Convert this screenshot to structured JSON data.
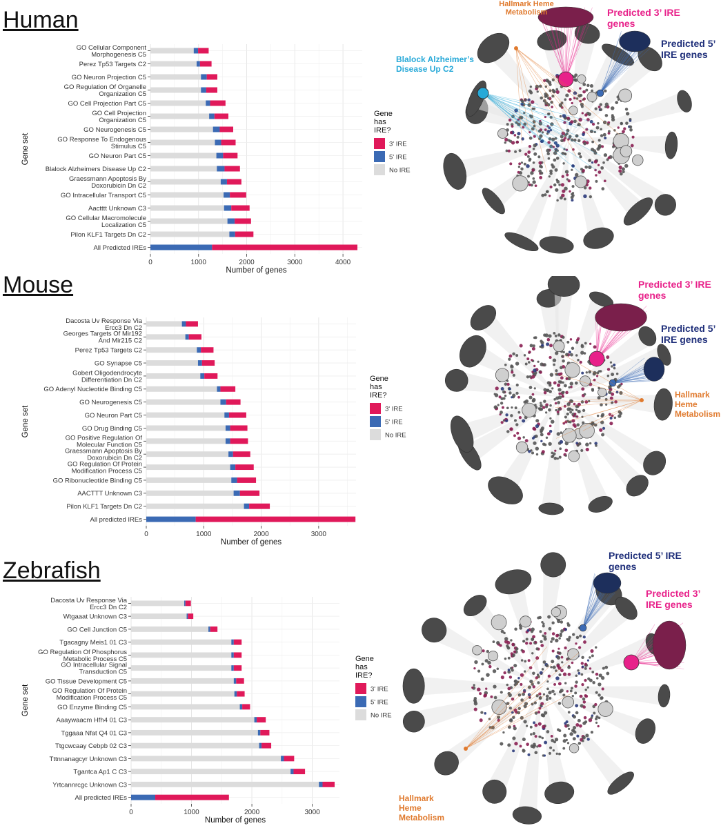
{
  "colors": {
    "ire3": "#e0195a",
    "ire5": "#3b6ab4",
    "noire": "#dcdcdc",
    "label_magenta": "#e8218a",
    "label_navy": "#1f2f7a",
    "label_cyan": "#27a9d8",
    "label_orange": "#e07a2e"
  },
  "panels": [
    {
      "title": "Human",
      "network_labels": {
        "heme": "Hallmark Heme Metabolism",
        "ire3": "Predicted 3’ IRE genes",
        "ire5": "Predicted 5’ IRE genes",
        "alz": "Blalock Alzheimer’s Disease Up C2"
      }
    },
    {
      "title": "Mouse",
      "network_labels": {
        "ire3": "Predicted 3’ IRE genes",
        "ire5": "Predicted 5’ IRE genes",
        "heme": "Hallmark Heme Metabolism"
      }
    },
    {
      "title": "Zebrafish",
      "network_labels": {
        "ire5": "Predicted 5’ IRE genes",
        "ire3": "Predicted 3’ IRE genes",
        "heme": "Hallmark Heme Metabolism"
      }
    }
  ],
  "chart_data": [
    {
      "type": "bar",
      "orientation": "horizontal",
      "stacked": true,
      "xlabel": "Number of genes",
      "ylabel": "Gene set",
      "xlim": [
        0,
        4400
      ],
      "xticks": [
        0,
        1000,
        2000,
        3000,
        4000
      ],
      "grid": true,
      "legend": {
        "title": [
          "Gene",
          "has",
          "IRE?"
        ],
        "placement": "right",
        "entries": [
          "3' IRE",
          "5' IRE",
          "No IRE"
        ]
      },
      "categories": [
        "GO Cellular Component Morphogenesis C5",
        "Perez Tp53 Targets C2",
        "GO Neuron Projection C5",
        "GO Regulation Of Organelle Organization C5",
        "GO Cell Projection Part C5",
        "GO Cell Projection Organization C5",
        "GO Neurogenesis C5",
        "GO Response To Endogenous Stimulus C5",
        "GO Neuron Part C5",
        "Blalock Alzheimers Disease Up C2",
        "Graessmann Apoptosis By Doxorubicin Dn C2",
        "GO Intracellular Transport C5",
        "Aactttt Unknown C3",
        "GO Cellular Macromolecule Localization C5",
        "Pilon KLF1 Targets Dn C2",
        "All Predicted IREs"
      ],
      "category_lines": [
        [
          "GO Cellular Component",
          "Morphogenesis C5"
        ],
        [
          "Perez Tp53 Targets C2"
        ],
        [
          "GO Neuron Projection C5"
        ],
        [
          "GO Regulation Of Organelle",
          "Organization C5"
        ],
        [
          "GO Cell Projection Part C5"
        ],
        [
          "GO Cell Projection",
          "Organization C5"
        ],
        [
          "GO Neurogenesis C5"
        ],
        [
          "GO Response To Endogenous",
          "Stimulus C5"
        ],
        [
          "GO Neuron Part C5"
        ],
        [
          "Blalock Alzheimers Disease Up C2"
        ],
        [
          "Graessmann Apoptosis By",
          "Doxorubicin Dn C2"
        ],
        [
          "GO Intracellular Transport C5"
        ],
        [
          "Aactttt Unknown C3"
        ],
        [
          "GO Cellular Macromolecule",
          "Localization C5"
        ],
        [
          "Pilon KLF1 Targets Dn C2"
        ],
        [
          "All Predicted IREs"
        ]
      ],
      "series": [
        {
          "name": "No IRE",
          "values": [
            900,
            960,
            1050,
            1050,
            1150,
            1220,
            1300,
            1340,
            1370,
            1380,
            1460,
            1520,
            1530,
            1600,
            1640,
            0
          ]
        },
        {
          "name": "5' IRE",
          "values": [
            90,
            70,
            120,
            110,
            90,
            110,
            140,
            130,
            140,
            160,
            130,
            130,
            150,
            150,
            120,
            1280
          ]
        },
        {
          "name": "3' IRE",
          "values": [
            220,
            240,
            220,
            230,
            320,
            290,
            280,
            300,
            300,
            320,
            300,
            340,
            380,
            340,
            380,
            3020
          ]
        }
      ]
    },
    {
      "type": "bar",
      "orientation": "horizontal",
      "stacked": true,
      "xlabel": "Number of genes",
      "ylabel": "Gene set",
      "xlim": [
        0,
        3650
      ],
      "xticks": [
        0,
        1000,
        2000,
        3000
      ],
      "grid": true,
      "legend": {
        "title": [
          "Gene",
          "has",
          "IRE?"
        ],
        "placement": "right",
        "entries": [
          "3' IRE",
          "5' IRE",
          "No IRE"
        ]
      },
      "categories": [
        "Dacosta Uv Response Via Ercc3 Dn C2",
        "Georges Targets Of Mir192 And Mir215 C2",
        "Perez Tp53 Targets C2",
        "GO Synapse C5",
        "Gobert Oligodendrocyte Differentiation Dn C2",
        "GO Adenyl Nucleotide Binding C5",
        "GO Neurogenesis C5",
        "GO Neuron Part C5",
        "GO Drug Binding C5",
        "GO Positive Regulation Of Molecular Function C5",
        "Graessmann Apoptosis By Doxorubicin Dn C2",
        "GO Regulation Of Protein Modification Process C5",
        "GO Ribonucleotide Binding C5",
        "AACTTT Unknown C3",
        "Pilon KLF1 Targets Dn C2",
        "All predicted IREs"
      ],
      "category_lines": [
        [
          "Dacosta Uv Response Via",
          "Ercc3 Dn C2"
        ],
        [
          "Georges Targets Of Mir192",
          "And Mir215 C2"
        ],
        [
          "Perez Tp53 Targets C2"
        ],
        [
          "GO Synapse C5"
        ],
        [
          "Gobert Oligodendrocyte",
          "Differentiation Dn C2"
        ],
        [
          "GO Adenyl Nucleotide Binding C5"
        ],
        [
          "GO Neurogenesis C5"
        ],
        [
          "GO Neuron Part C5"
        ],
        [
          "GO Drug Binding C5"
        ],
        [
          "GO Positive Regulation Of",
          "Molecular Function C5"
        ],
        [
          "Graessmann Apoptosis By",
          "Doxorubicin Dn C2"
        ],
        [
          "GO Regulation Of Protein",
          "Modification Process C5"
        ],
        [
          "GO Ribonucleotide Binding C5"
        ],
        [
          "AACTTT Unknown C3"
        ],
        [
          "Pilon KLF1 Targets Dn C2"
        ],
        [
          "All predicted IREs"
        ]
      ],
      "series": [
        {
          "name": "No IRE",
          "values": [
            620,
            680,
            880,
            900,
            940,
            1230,
            1290,
            1360,
            1380,
            1380,
            1430,
            1460,
            1480,
            1520,
            1700,
            0
          ]
        },
        {
          "name": "5' IRE",
          "values": [
            70,
            60,
            70,
            70,
            70,
            60,
            100,
            80,
            80,
            80,
            80,
            90,
            100,
            110,
            90,
            860
          ]
        },
        {
          "name": "3' IRE",
          "values": [
            210,
            220,
            220,
            220,
            230,
            260,
            250,
            300,
            300,
            310,
            300,
            320,
            330,
            340,
            360,
            2780
          ]
        }
      ]
    },
    {
      "type": "bar",
      "orientation": "horizontal",
      "stacked": true,
      "xlabel": "Number of genes",
      "ylabel": "Gene set",
      "xlim": [
        0,
        3450
      ],
      "xticks": [
        0,
        1000,
        2000,
        3000
      ],
      "grid": true,
      "legend": {
        "title": [
          "Gene",
          "has",
          "IRE?"
        ],
        "placement": "right",
        "entries": [
          "3' IRE",
          "5' IRE",
          "No IRE"
        ]
      },
      "categories": [
        "Dacosta Uv Response Via Ercc3 Dn C2",
        "Wtgaaat Unknown C3",
        "GO Cell Junction C5",
        "Tgacagny Meis1 01 C3",
        "GO Regulation Of Phosphorus Metabolic Process C5",
        "GO Intracellular Signal Transduction C5",
        "GO Tissue Development C5",
        "GO Regulation Of Protein Modification Process C5",
        "GO Enzyme Binding C5",
        "Aaaywaacm Hfh4 01 C3",
        "Tggaaa Nfat Q4 01 C3",
        "Ttgcwcaay Cebpb 02 C3",
        "Tttnnanagcyr Unknown C3",
        "Tgantca Ap1 C C3",
        "Yrtcannrcgc Unknown C3",
        "All predicted IREs"
      ],
      "category_lines": [
        [
          "Dacosta Uv Response Via",
          "Ercc3 Dn C2"
        ],
        [
          "Wtgaaat Unknown C3"
        ],
        [
          "GO Cell Junction C5"
        ],
        [
          "Tgacagny Meis1 01 C3"
        ],
        [
          "GO Regulation Of Phosphorus",
          "Metabolic Process C5"
        ],
        [
          "GO Intracellular Signal",
          "Transduction C5"
        ],
        [
          "GO Tissue Development C5"
        ],
        [
          "GO Regulation Of Protein",
          "Modification Process C5"
        ],
        [
          "GO Enzyme Binding C5"
        ],
        [
          "Aaaywaacm Hfh4 01 C3"
        ],
        [
          "Tggaaa Nfat Q4 01 C3"
        ],
        [
          "Ttgcwcaay Cebpb 02 C3"
        ],
        [
          "Tttnnanagcyr Unknown C3"
        ],
        [
          "Tgantca Ap1 C C3"
        ],
        [
          "Yrtcannrcgc Unknown C3"
        ],
        [
          "All predicted IREs"
        ]
      ],
      "series": [
        {
          "name": "No IRE",
          "values": [
            880,
            920,
            1280,
            1660,
            1660,
            1660,
            1700,
            1710,
            1800,
            2040,
            2100,
            2120,
            2480,
            2640,
            3110,
            0
          ]
        },
        {
          "name": "5' IRE",
          "values": [
            20,
            20,
            30,
            40,
            40,
            40,
            40,
            40,
            40,
            40,
            40,
            40,
            50,
            50,
            60,
            400
          ]
        },
        {
          "name": "3' IRE",
          "values": [
            90,
            90,
            120,
            130,
            130,
            130,
            130,
            130,
            130,
            150,
            150,
            160,
            170,
            190,
            200,
            1220
          ]
        }
      ]
    }
  ]
}
